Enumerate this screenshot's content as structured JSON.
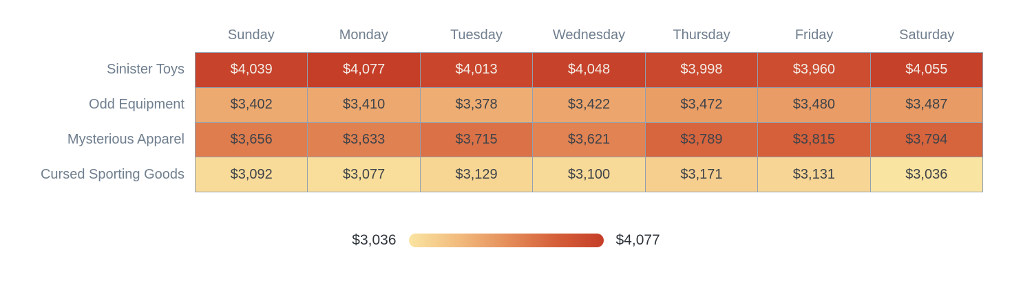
{
  "chart_data": {
    "type": "heatmap",
    "title": "",
    "columns": [
      "Sunday",
      "Monday",
      "Tuesday",
      "Wednesday",
      "Thursday",
      "Friday",
      "Saturday"
    ],
    "rows": [
      "Sinister Toys",
      "Odd Equipment",
      "Mysterious Apparel",
      "Cursed Sporting Goods"
    ],
    "values": [
      [
        4039,
        4077,
        4013,
        4048,
        3998,
        3960,
        4055
      ],
      [
        3402,
        3410,
        3378,
        3422,
        3472,
        3480,
        3487
      ],
      [
        3656,
        3633,
        3715,
        3621,
        3789,
        3815,
        3794
      ],
      [
        3092,
        3077,
        3129,
        3100,
        3171,
        3131,
        3036
      ]
    ],
    "value_prefix": "$",
    "min": 3036,
    "max": 4077,
    "legend": {
      "min_label": "$3,036",
      "max_label": "$4,077"
    },
    "colorscale": [
      {
        "t": 0,
        "color": "#fae4a1"
      },
      {
        "t": 0.25,
        "color": "#f2bc7e"
      },
      {
        "t": 0.5,
        "color": "#e58f5b"
      },
      {
        "t": 0.75,
        "color": "#d5603a"
      },
      {
        "t": 1,
        "color": "#c53e28"
      }
    ],
    "grid": true,
    "legend_position": "bottom-center"
  },
  "colors": {
    "background": "#ffffff",
    "axis_label": "#6f7e8e",
    "grid_line": "#919fb0",
    "legend_text": "#30353c",
    "cell_text_dark": "#3f4349",
    "cell_text_light": "#f3ece6",
    "light_text_threshold": 0.8
  }
}
